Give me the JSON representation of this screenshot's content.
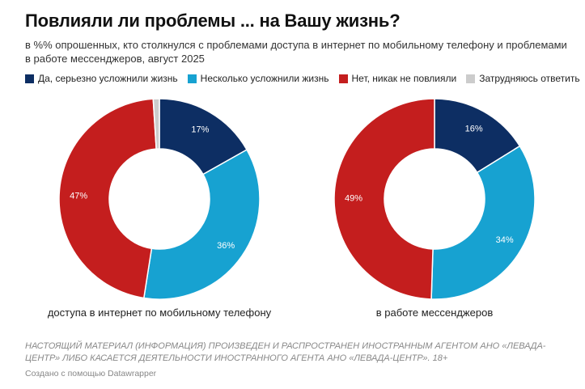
{
  "title": "Повлияли ли проблемы ... на Вашу жизнь?",
  "subtitle": "в %% опрошенных, кто столкнулся с проблемами доступа в интернет по мобильному телефону и проблемами в работе мессенджеров, август 2025",
  "legend": [
    {
      "label": "Да, серьезно усложнили жизнь",
      "color": "#0d2e63"
    },
    {
      "label": "Несколько усложнили жизнь",
      "color": "#17a2d1"
    },
    {
      "label": "Нет, никак не повлияли",
      "color": "#c41e1e"
    },
    {
      "label": "Затрудняюсь ответить",
      "color": "#cccccc"
    }
  ],
  "chart_data": [
    {
      "type": "pie",
      "title": "доступа в интернет по мобильному телефону",
      "categories": [
        "Да, серьезно усложнили жизнь",
        "Несколько усложнили жизнь",
        "Нет, никак не повлияли",
        "Затрудняюсь ответить"
      ],
      "values": [
        17,
        36,
        47,
        1
      ],
      "labels": [
        "17%",
        "36%",
        "47%",
        ""
      ]
    },
    {
      "type": "pie",
      "title": "в работе мессенджеров",
      "categories": [
        "Да, серьезно усложнили жизнь",
        "Несколько усложнили жизнь",
        "Нет, никак не повлияли",
        "Затрудняюсь ответить"
      ],
      "values": [
        16,
        34,
        49,
        0
      ],
      "labels": [
        "16%",
        "34%",
        "49%",
        ""
      ]
    }
  ],
  "notes": "НАСТОЯЩИЙ МАТЕРИАЛ (ИНФОРМАЦИЯ) ПРОИЗВЕДЕН И РАСПРОСТРАНЕН ИНОСТРАННЫМ АГЕНТОМ АНО «ЛЕВАДА-ЦЕНТР» ЛИБО КАСАЕТСЯ ДЕЯТЕЛЬНОСТИ ИНОСТРАННОГО АГЕНТА АНО «ЛЕВАДА-ЦЕНТР». 18+",
  "credit": "Создано с помощью Datawrapper"
}
